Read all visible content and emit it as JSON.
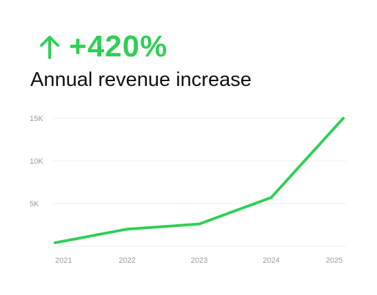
{
  "headline": {
    "metric": "+420%",
    "arrow_icon": "arrow-up-icon",
    "accent_color": "#2fcf55"
  },
  "subtitle": "Annual revenue increase",
  "chart_data": {
    "type": "line",
    "x": [
      "2021",
      "2022",
      "2023",
      "2024",
      "2025"
    ],
    "series": [
      {
        "values": [
          400,
          2000,
          2600,
          5700,
          15000
        ],
        "color": "#2fcf55"
      }
    ],
    "yticks": [
      5000,
      10000,
      15000
    ],
    "ytick_labels": [
      "5K",
      "10K",
      "15K"
    ],
    "ylim": [
      0,
      15000
    ],
    "grid": true,
    "xlabel": "",
    "ylabel": ""
  }
}
